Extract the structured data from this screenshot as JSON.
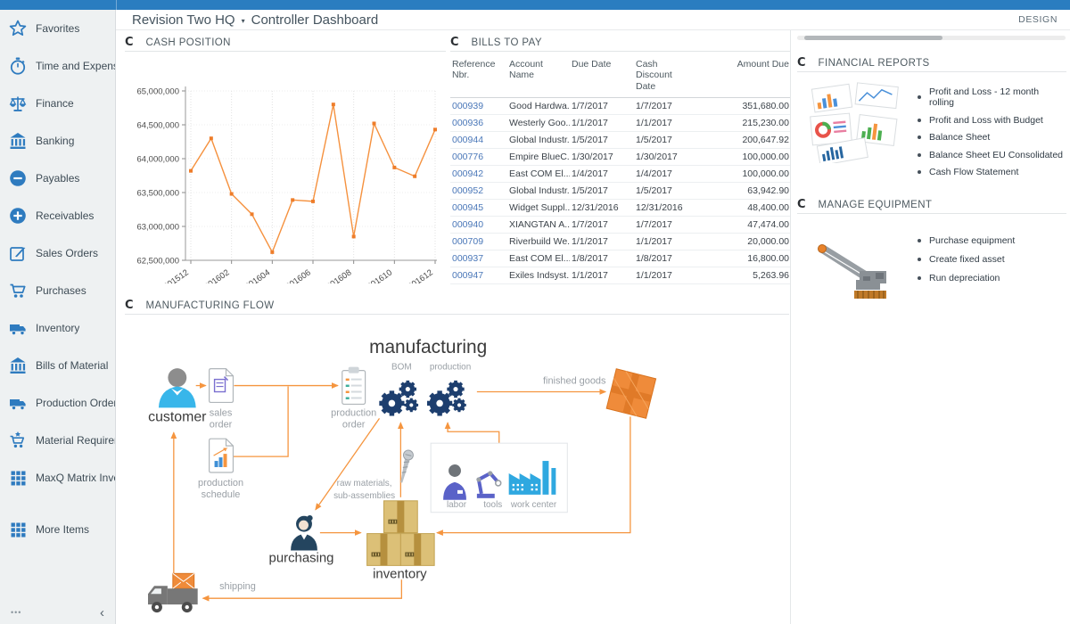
{
  "theme": {
    "topbar_blue": "#2a7dc0",
    "sidebar_icon_blue": "#2e7bbf",
    "accent_orange": "#f5913e",
    "link_blue": "#4a77b8",
    "gears_navy": "#1d3e6e"
  },
  "icons": {
    "refresh": "C"
  },
  "header": {
    "space": "Revision Two HQ",
    "caret": "▾",
    "page": "Controller Dashboard",
    "design_label": "DESIGN"
  },
  "sidebar": {
    "items": [
      {
        "label": "Favorites",
        "icon": "star"
      },
      {
        "label": "Time and Expenses",
        "icon": "stopwatch"
      },
      {
        "label": "Finance",
        "icon": "scales"
      },
      {
        "label": "Banking",
        "icon": "bank"
      },
      {
        "label": "Payables",
        "icon": "minus-circle"
      },
      {
        "label": "Receivables",
        "icon": "plus-circle"
      },
      {
        "label": "Sales Orders",
        "icon": "edit"
      },
      {
        "label": "Purchases",
        "icon": "cart"
      },
      {
        "label": "Inventory",
        "icon": "truck"
      },
      {
        "label": "Bills of Material",
        "icon": "bank"
      },
      {
        "label": "Production Orders",
        "icon": "truck"
      },
      {
        "label": "Material Requirem...",
        "icon": "cart-star"
      },
      {
        "label": "MaxQ Matrix Invent...",
        "icon": "grid"
      },
      {
        "label": "More Items",
        "icon": "grid",
        "gap_before": true
      }
    ],
    "footer": {
      "more": "•••",
      "collapse": "‹"
    }
  },
  "cash_position": {
    "title": "CASH POSITION",
    "chart_data": {
      "type": "line",
      "x": [
        "201512",
        "201601",
        "201602",
        "201603",
        "201604",
        "201605",
        "201606",
        "201607",
        "201608",
        "201609",
        "201610",
        "201611",
        "201612"
      ],
      "values": [
        63820000,
        64300000,
        63480000,
        63180000,
        62620000,
        63390000,
        63370000,
        64800000,
        62850000,
        64520000,
        63870000,
        63740000,
        64430000
      ],
      "x_tick_labels": [
        "201512",
        "201602",
        "201604",
        "201606",
        "201608",
        "201610",
        "201612"
      ],
      "ylim": [
        62500000,
        65000000
      ],
      "y_tick_step": 500000,
      "line_color": "#f5913e",
      "marker_color": "#ee7d2a",
      "grid": true,
      "legend": "none",
      "title": "CASH POSITION",
      "xlabel": "",
      "ylabel": ""
    }
  },
  "bills_to_pay": {
    "title": "BILLS TO PAY",
    "columns": [
      "Reference Nbr.",
      "Account Name",
      "Due Date",
      "Cash Discount Date",
      "Amount Due"
    ],
    "rows": [
      [
        "000939",
        "Good Hardwa...",
        "1/7/2017",
        "1/7/2017",
        "351,680.00"
      ],
      [
        "000936",
        "Westerly Goo...",
        "1/1/2017",
        "1/1/2017",
        "215,230.00"
      ],
      [
        "000944",
        "Global Industr...",
        "1/5/2017",
        "1/5/2017",
        "200,647.92"
      ],
      [
        "000776",
        "Empire BlueC...",
        "1/30/2017",
        "1/30/2017",
        "100,000.00"
      ],
      [
        "000942",
        "East COM El...",
        "1/4/2017",
        "1/4/2017",
        "100,000.00"
      ],
      [
        "000952",
        "Global Industr...",
        "1/5/2017",
        "1/5/2017",
        "63,942.90"
      ],
      [
        "000945",
        "Widget Suppl...",
        "12/31/2016",
        "12/31/2016",
        "48,400.00"
      ],
      [
        "000940",
        "XIANGTAN A...",
        "1/7/2017",
        "1/7/2017",
        "47,474.00"
      ],
      [
        "000709",
        "Riverbuild We...",
        "1/1/2017",
        "1/1/2017",
        "20,000.00"
      ],
      [
        "000937",
        "East COM El...",
        "1/8/2017",
        "1/8/2017",
        "16,800.00"
      ],
      [
        "000947",
        "Exiles Indsyst...",
        "1/1/2017",
        "1/1/2017",
        "5,263.96"
      ]
    ]
  },
  "financial_reports": {
    "title": "FINANCIAL REPORTS",
    "links": [
      "Profit and Loss - 12 month rolling",
      "Profit and Loss with Budget",
      "Balance Sheet",
      "Balance Sheet EU Consolidated",
      "Cash Flow Statement"
    ]
  },
  "manage_equipment": {
    "title": "MANAGE EQUIPMENT",
    "links": [
      "Purchase equipment",
      "Create fixed asset",
      "Run depreciation"
    ]
  },
  "manufacturing_flow": {
    "title": "MANUFACTURING FLOW",
    "labels": {
      "heading": "manufacturing",
      "bom": "BOM",
      "production": "production",
      "customer": "customer",
      "sales_order": [
        "sales",
        "order"
      ],
      "production_order": [
        "production",
        "order"
      ],
      "production_schedule": [
        "production",
        "schedule"
      ],
      "finished_goods": "finished goods",
      "raw_materials": [
        "raw materials,",
        "sub-assemblies"
      ],
      "labor": "labor",
      "tools": "tools",
      "work_center": "work center",
      "purchasing": "purchasing",
      "inventory": "inventory",
      "shipping": "shipping"
    }
  }
}
